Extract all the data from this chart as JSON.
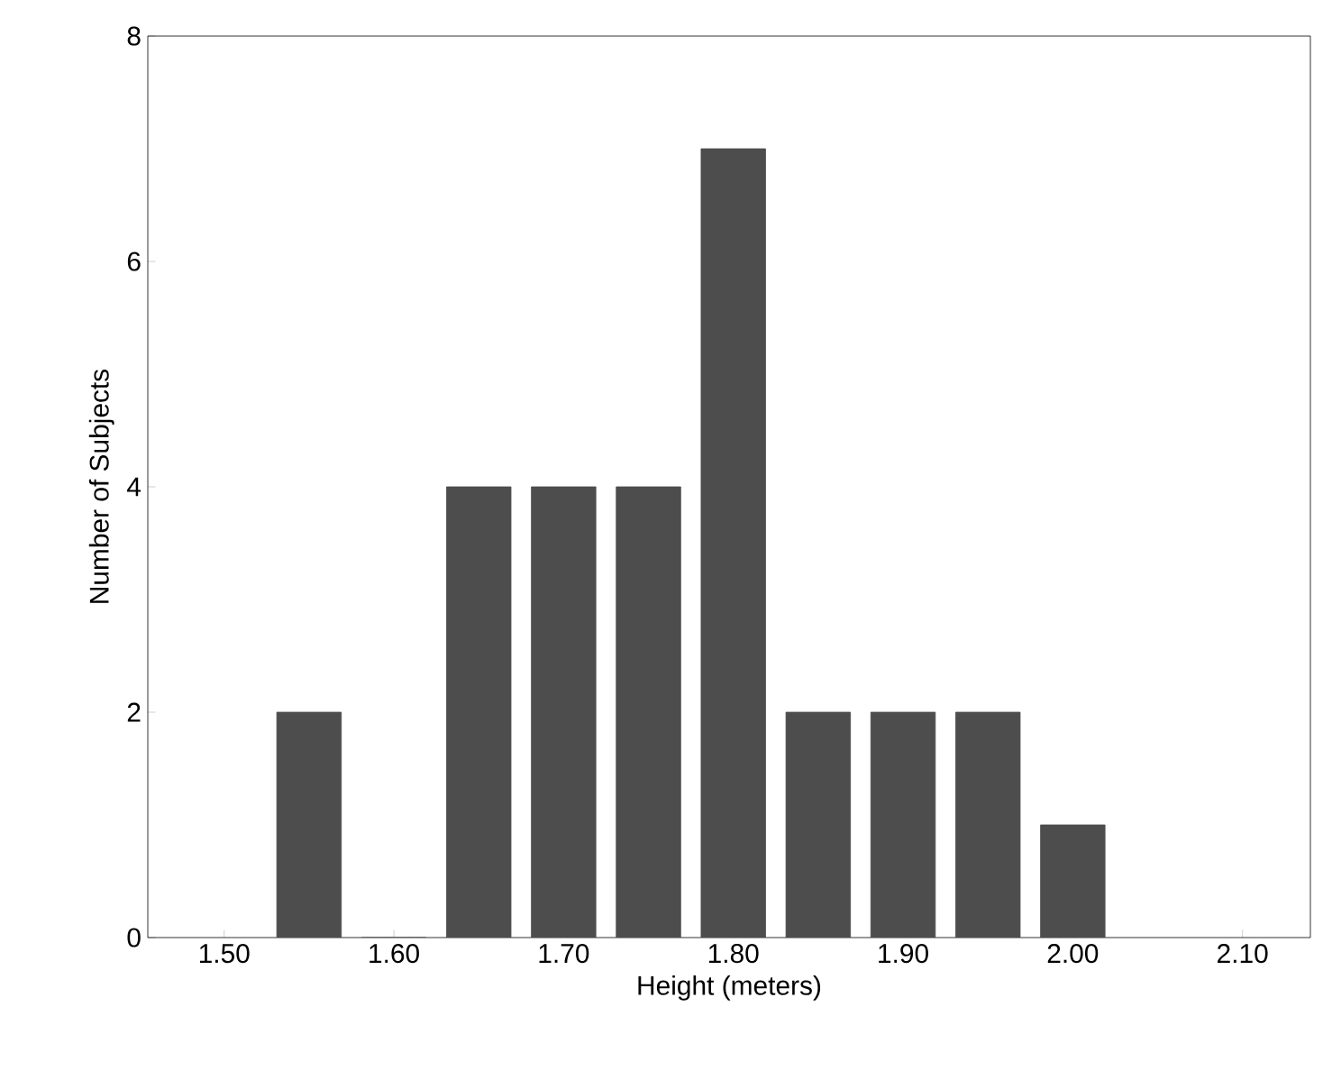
{
  "chart_data": {
    "type": "bar",
    "xlabel": "Height (meters)",
    "ylabel": "Number of Subjects",
    "x": [
      1.55,
      1.6,
      1.65,
      1.7,
      1.75,
      1.8,
      1.85,
      1.9,
      1.95,
      2.0
    ],
    "values": [
      2,
      0,
      4,
      4,
      4,
      7,
      2,
      2,
      2,
      1
    ],
    "color": "#4d4d4d",
    "xlim": [
      1.455,
      2.14
    ],
    "ylim": [
      0,
      8
    ],
    "xticks": [
      {
        "value": 1.5,
        "label": "1.50"
      },
      {
        "value": 1.6,
        "label": "1.60"
      },
      {
        "value": 1.7,
        "label": "1.70"
      },
      {
        "value": 1.8,
        "label": "1.80"
      },
      {
        "value": 1.9,
        "label": "1.90"
      },
      {
        "value": 2.0,
        "label": "2.00"
      },
      {
        "value": 2.1,
        "label": "2.10"
      }
    ],
    "yticks": [
      0,
      2,
      4,
      6,
      8
    ]
  }
}
